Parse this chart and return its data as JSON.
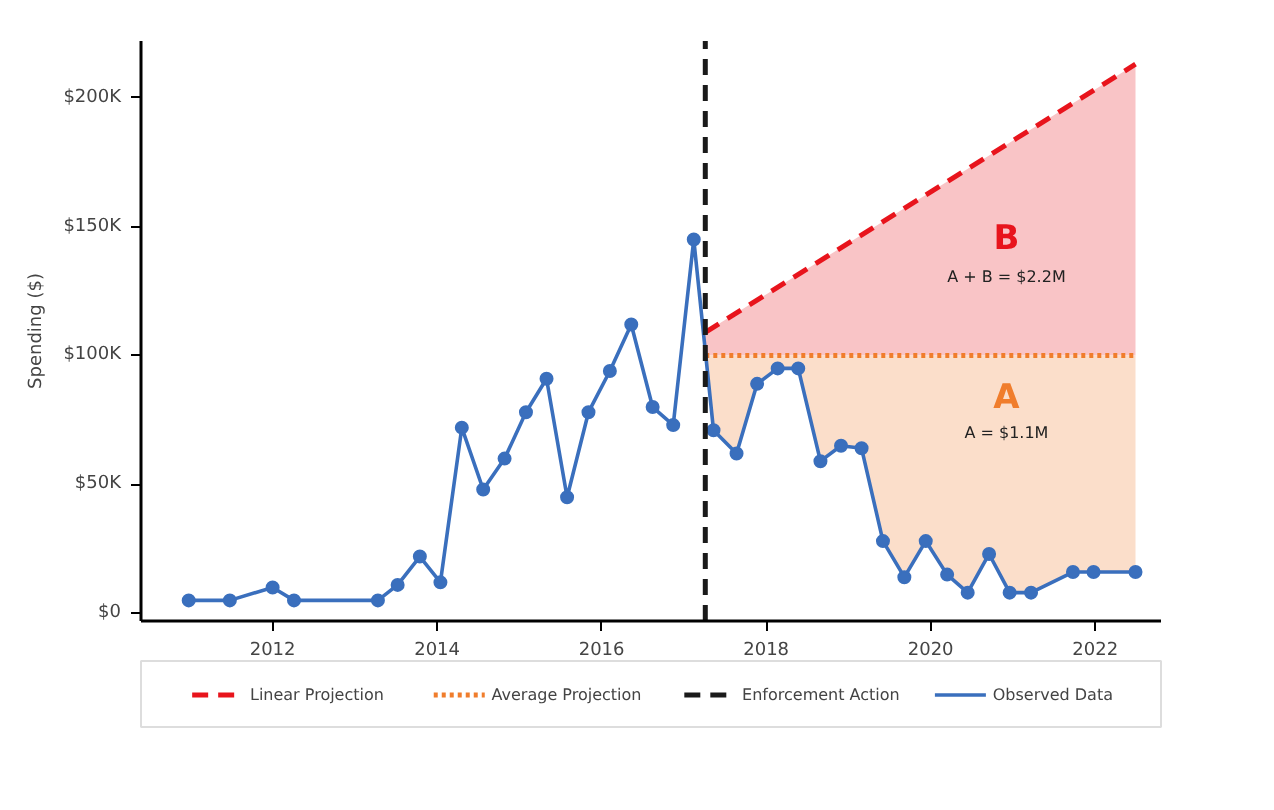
{
  "chart_data": {
    "type": "line",
    "ylabel": "Spending ($)",
    "xlim": [
      2010.4,
      2022.8
    ],
    "xticks": [
      2012,
      2014,
      2016,
      2018,
      2020,
      2022
    ],
    "ylim": [
      -3000,
      222000
    ],
    "yticks": [
      {
        "value": 0,
        "label": "$0"
      },
      {
        "value": 50000,
        "label": "$50K"
      },
      {
        "value": 100000,
        "label": "$100K"
      },
      {
        "value": 150000,
        "label": "$150K"
      },
      {
        "value": 200000,
        "label": "$200K"
      }
    ],
    "grid": false,
    "legend": "bottom",
    "series": [
      {
        "name": "Linear Projection",
        "color": "#e8141c",
        "line_style": "dashed",
        "marker": "none",
        "x": [
          2017.26,
          2022.49
        ],
        "values": [
          109000,
          213000
        ],
        "lower": [
          100000,
          100000
        ],
        "upper": [
          109000,
          213000
        ]
      },
      {
        "name": "Average Projection",
        "color": "#f07d2c",
        "line_style": "dotted",
        "marker": "none",
        "x": [
          2017.26,
          2017.36,
          2017.64,
          2017.89,
          2018.14,
          2018.39,
          2018.66,
          2018.91,
          2019.16,
          2019.42,
          2019.68,
          2019.94,
          2020.2,
          2020.45,
          2020.71,
          2020.96,
          2021.22,
          2021.73,
          2021.98,
          2022.49
        ],
        "values": [
          100000,
          100000,
          100000,
          100000,
          100000,
          100000,
          100000,
          100000,
          100000,
          100000,
          100000,
          100000,
          100000,
          100000,
          100000,
          100000,
          100000,
          100000,
          100000,
          100000
        ],
        "lower": [
          100000,
          71000,
          62000,
          89000,
          95000,
          95000,
          59000,
          65000,
          64000,
          28000,
          14000,
          28000,
          15000,
          8000,
          23000,
          8000,
          8000,
          16000,
          16000,
          16000
        ],
        "upper": [
          100000,
          100000,
          100000,
          100000,
          100000,
          100000,
          100000,
          100000,
          100000,
          100000,
          100000,
          100000,
          100000,
          100000,
          100000,
          100000,
          100000,
          100000,
          100000,
          100000
        ]
      },
      {
        "name": "Observed Data",
        "color": "#3a6fbd",
        "line_style": "solid",
        "marker": "circle",
        "x": [
          2010.98,
          2011.48,
          2012.0,
          2012.26,
          2013.28,
          2013.52,
          2013.79,
          2014.04,
          2014.3,
          2014.56,
          2014.82,
          2015.08,
          2015.33,
          2015.58,
          2015.84,
          2016.1,
          2016.36,
          2016.62,
          2016.87,
          2017.12,
          2017.36,
          2017.64,
          2017.89,
          2018.14,
          2018.39,
          2018.66,
          2018.91,
          2019.16,
          2019.42,
          2019.68,
          2019.94,
          2020.2,
          2020.45,
          2020.71,
          2020.96,
          2021.22,
          2021.73,
          2021.98,
          2022.49
        ],
        "values": [
          5000,
          5000,
          10000,
          5000,
          5000,
          11000,
          22000,
          12000,
          72000,
          48000,
          60000,
          78000,
          91000,
          45000,
          78000,
          94000,
          112000,
          80000,
          73000,
          145000,
          71000,
          62000,
          89000,
          95000,
          95000,
          59000,
          65000,
          64000,
          28000,
          14000,
          28000,
          15000,
          8000,
          23000,
          8000,
          8000,
          16000,
          16000,
          16000
        ]
      }
    ],
    "ref_lines": [
      {
        "axis": "x",
        "value": 2017.26,
        "label": "Enforcement Action",
        "color": "#1a1a1a",
        "line_style": "dashed"
      }
    ],
    "annotations": [
      "B",
      "A + B = $2.2M",
      "A",
      "A = $1.1M"
    ]
  }
}
